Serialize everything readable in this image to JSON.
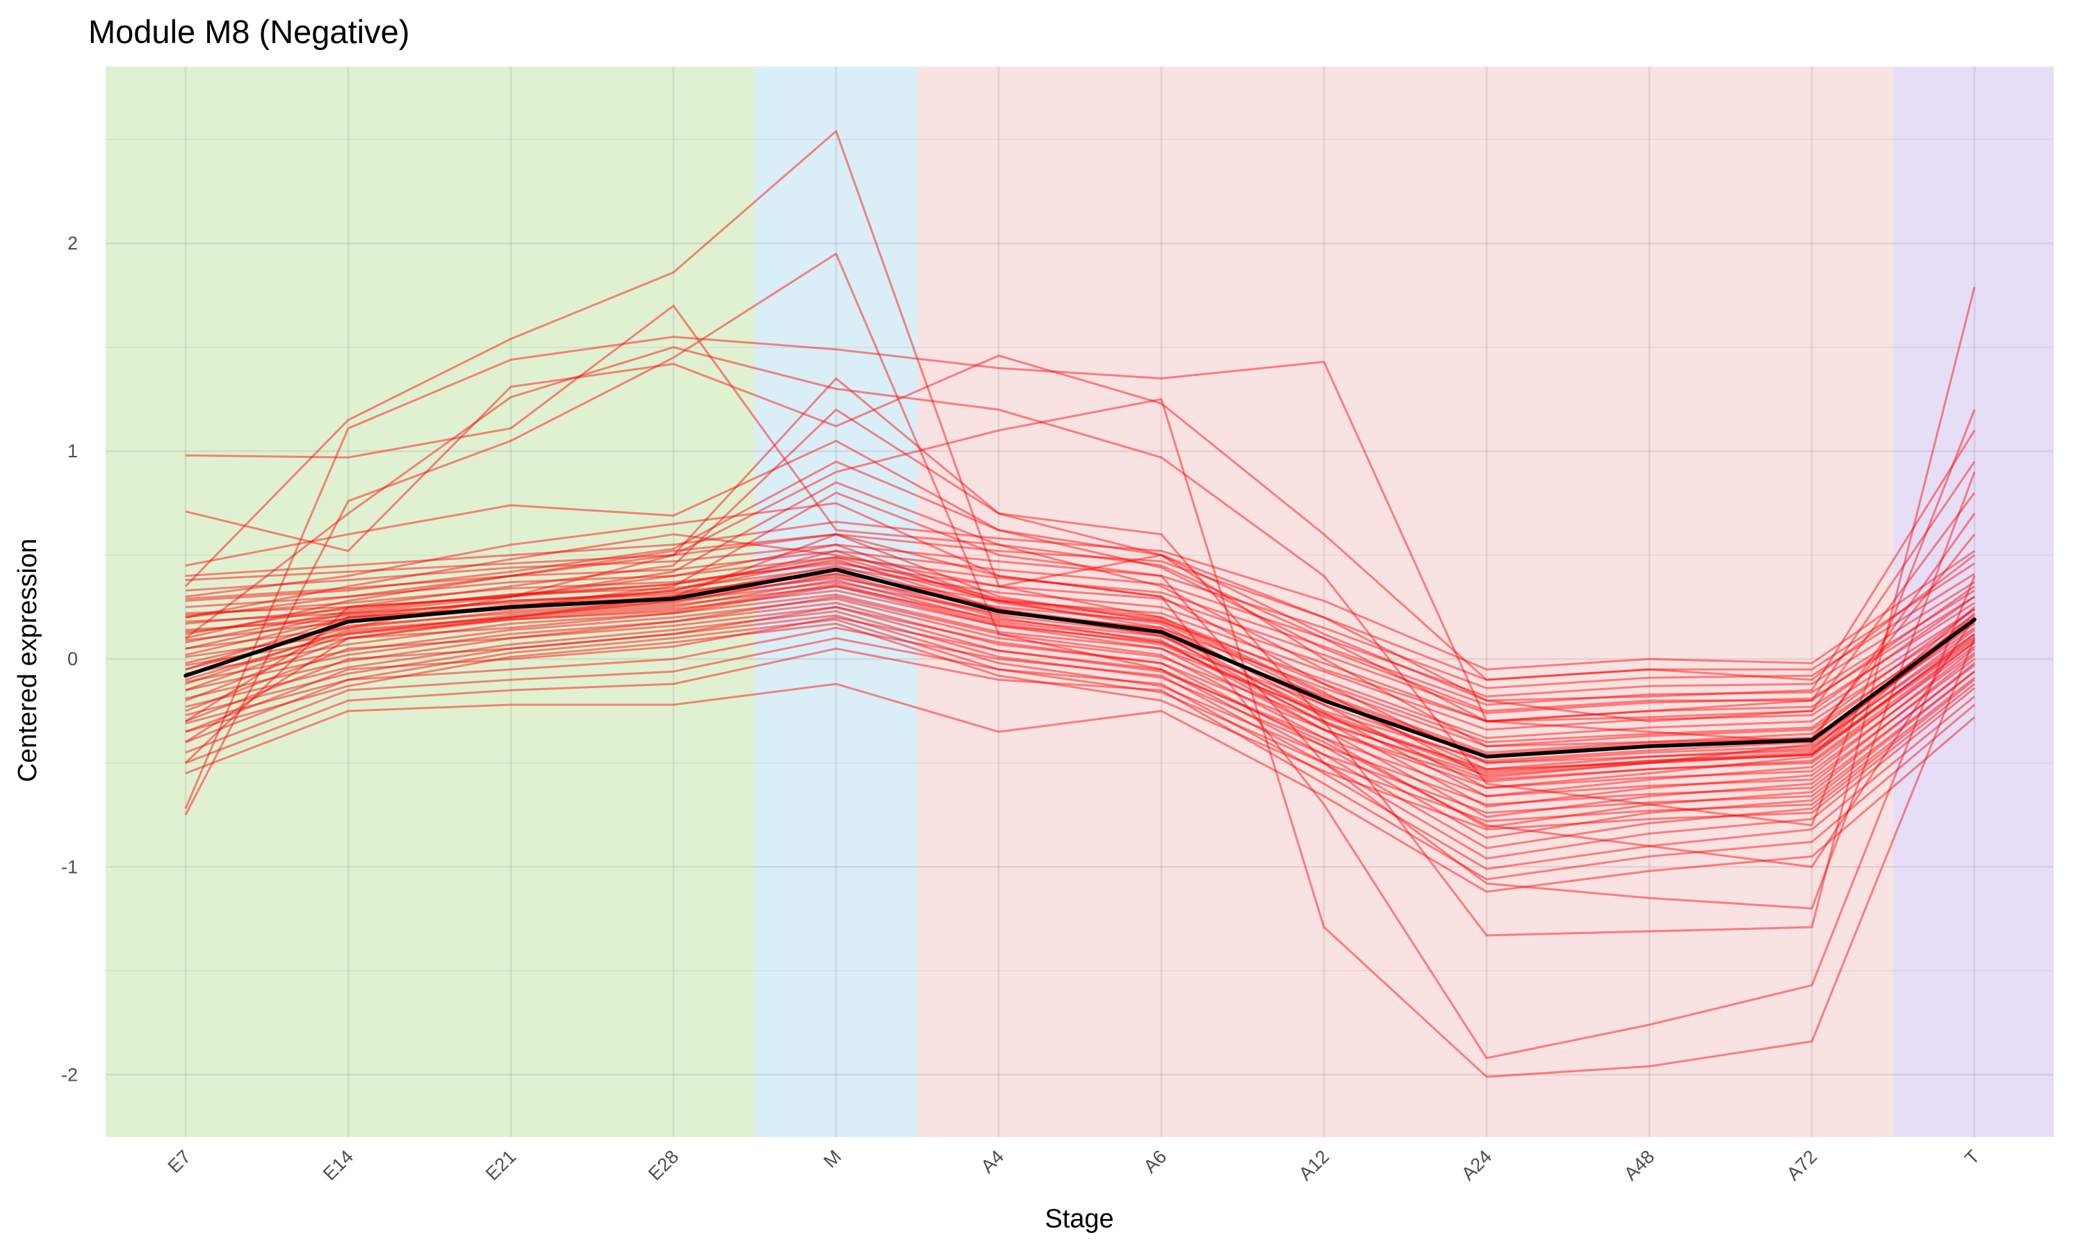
{
  "chart_data": {
    "type": "line",
    "title": "Module M8 (Negative)",
    "xlabel": "Stage",
    "ylabel": "Centered expression",
    "categories": [
      "E7",
      "E14",
      "E21",
      "E28",
      "M",
      "A4",
      "A6",
      "A12",
      "A24",
      "A48",
      "A72",
      "T"
    ],
    "ylim": [
      -2.3,
      2.85
    ],
    "yticks": [
      -2,
      -1,
      0,
      1,
      2
    ],
    "ytick_labels": [
      "-2",
      "-1",
      "0",
      "1",
      "2"
    ],
    "grid": true,
    "legend": "none",
    "stage_groups": [
      {
        "from": "E7",
        "to": "E28",
        "color": "#e0f1d2"
      },
      {
        "from": "M",
        "to": "M",
        "color": "#daeef8"
      },
      {
        "from": "A4",
        "to": "A72",
        "color": "#f9e2e2"
      },
      {
        "from": "T",
        "to": "T",
        "color": "#e6def6"
      }
    ],
    "gene_line_color": "#ff0000",
    "gene_line_opacity": 0.45,
    "mean_line_color": "#000000",
    "mean_series": [
      -0.08,
      0.18,
      0.25,
      0.29,
      0.43,
      0.23,
      0.13,
      -0.2,
      -0.47,
      -0.42,
      -0.39,
      0.19
    ],
    "gene_series": [
      [
        0.98,
        0.97,
        1.11,
        1.7,
        0.62,
        0.55,
        0.45,
        0.1,
        -0.3,
        -0.25,
        -0.2,
        0.35
      ],
      [
        0.71,
        0.52,
        1.31,
        1.42,
        1.12,
        1.46,
        1.23,
        0.6,
        -0.1,
        -0.05,
        -0.1,
        0.5
      ],
      [
        0.35,
        1.15,
        1.54,
        1.86,
        2.54,
        0.35,
        0.5,
        0.2,
        -0.2,
        -0.3,
        -0.25,
        0.3
      ],
      [
        -0.72,
        1.11,
        1.44,
        1.55,
        1.49,
        1.4,
        1.35,
        1.43,
        -0.3,
        -0.35,
        -0.4,
        0.7
      ],
      [
        -0.75,
        0.76,
        1.05,
        1.45,
        1.95,
        0.12,
        -0.05,
        -0.4,
        -0.8,
        -0.9,
        -1.0,
        0.2
      ],
      [
        0.1,
        0.7,
        1.26,
        1.5,
        1.3,
        1.2,
        0.97,
        0.4,
        -0.6,
        -0.7,
        -0.8,
        1.2
      ],
      [
        -0.5,
        0.25,
        0.3,
        0.5,
        0.9,
        1.1,
        1.25,
        -1.29,
        -2.01,
        -1.96,
        -1.84,
        0.1
      ],
      [
        -0.4,
        0.1,
        0.2,
        0.3,
        0.6,
        0.4,
        0.3,
        -0.7,
        -1.92,
        -1.76,
        -1.57,
        0.4
      ],
      [
        0.2,
        0.3,
        0.4,
        0.5,
        1.35,
        0.7,
        0.6,
        -0.3,
        -1.33,
        -1.31,
        -1.29,
        1.79
      ],
      [
        -0.3,
        0.2,
        0.25,
        0.35,
        0.8,
        0.5,
        0.4,
        -0.5,
        -1.08,
        -1.15,
        -1.2,
        0.9
      ],
      [
        0.45,
        0.6,
        0.74,
        0.69,
        1.05,
        0.62,
        0.5,
        0.0,
        -0.42,
        -0.4,
        -0.38,
        0.6
      ],
      [
        0.3,
        0.4,
        0.55,
        0.65,
        0.75,
        0.4,
        0.3,
        -0.12,
        -0.5,
        -0.47,
        -0.44,
        0.25
      ],
      [
        0.2,
        0.35,
        0.48,
        0.6,
        0.5,
        0.35,
        0.2,
        -0.16,
        -0.57,
        -0.5,
        -0.46,
        0.22
      ],
      [
        0.1,
        0.28,
        0.4,
        0.52,
        0.6,
        0.3,
        0.18,
        -0.19,
        -0.53,
        -0.5,
        -0.41,
        0.18
      ],
      [
        0.05,
        0.22,
        0.3,
        0.4,
        0.55,
        0.28,
        0.15,
        -0.22,
        -0.62,
        -0.55,
        -0.47,
        0.12
      ],
      [
        -0.05,
        0.2,
        0.25,
        0.33,
        0.48,
        0.24,
        0.11,
        -0.26,
        -0.66,
        -0.58,
        -0.52,
        0.08
      ],
      [
        -0.12,
        0.14,
        0.2,
        0.28,
        0.4,
        0.2,
        0.08,
        -0.3,
        -0.71,
        -0.62,
        -0.56,
        0.05
      ],
      [
        -0.2,
        0.1,
        0.15,
        0.22,
        0.35,
        0.16,
        0.05,
        -0.34,
        -0.76,
        -0.66,
        -0.6,
        0.02
      ],
      [
        -0.25,
        0.05,
        0.1,
        0.18,
        0.3,
        0.12,
        0.02,
        -0.38,
        -0.81,
        -0.7,
        -0.64,
        -0.02
      ],
      [
        -0.3,
        0.0,
        0.05,
        0.12,
        0.25,
        0.08,
        -0.02,
        -0.42,
        -0.86,
        -0.74,
        -0.68,
        -0.06
      ],
      [
        -0.35,
        -0.05,
        0.0,
        0.06,
        0.2,
        0.04,
        -0.05,
        -0.46,
        -0.91,
        -0.79,
        -0.72,
        -0.1
      ],
      [
        -0.4,
        -0.1,
        -0.05,
        0.0,
        0.15,
        0.0,
        -0.08,
        -0.5,
        -0.96,
        -0.84,
        -0.77,
        -0.14
      ],
      [
        -0.45,
        -0.15,
        -0.1,
        -0.06,
        0.1,
        -0.05,
        -0.12,
        -0.55,
        -1.01,
        -0.9,
        -0.82,
        -0.18
      ],
      [
        -0.5,
        -0.2,
        -0.15,
        -0.12,
        0.05,
        -0.1,
        -0.15,
        -0.6,
        -1.06,
        -0.95,
        -0.88,
        -0.22
      ],
      [
        -0.55,
        -0.25,
        -0.22,
        -0.22,
        -0.12,
        -0.35,
        -0.25,
        -0.66,
        -1.12,
        -1.02,
        -0.95,
        -0.28
      ],
      [
        0.4,
        0.45,
        0.5,
        0.55,
        0.66,
        0.58,
        0.52,
        0.28,
        -0.05,
        0.0,
        -0.02,
        0.52
      ],
      [
        0.38,
        0.42,
        0.46,
        0.5,
        0.6,
        0.52,
        0.47,
        0.2,
        -0.1,
        -0.05,
        -0.05,
        0.46
      ],
      [
        0.33,
        0.38,
        0.44,
        0.47,
        0.55,
        0.47,
        0.4,
        0.15,
        -0.14,
        -0.09,
        -0.08,
        0.41
      ],
      [
        0.29,
        0.34,
        0.4,
        0.43,
        0.52,
        0.43,
        0.36,
        0.1,
        -0.18,
        -0.13,
        -0.12,
        0.37
      ],
      [
        0.25,
        0.3,
        0.37,
        0.4,
        0.49,
        0.39,
        0.32,
        0.06,
        -0.22,
        -0.17,
        -0.16,
        0.33
      ],
      [
        0.21,
        0.27,
        0.34,
        0.37,
        0.46,
        0.35,
        0.29,
        0.02,
        -0.26,
        -0.21,
        -0.19,
        0.3
      ],
      [
        0.17,
        0.24,
        0.31,
        0.34,
        0.44,
        0.32,
        0.25,
        -0.02,
        -0.3,
        -0.25,
        -0.23,
        0.27
      ],
      [
        0.13,
        0.21,
        0.28,
        0.32,
        0.41,
        0.28,
        0.22,
        -0.06,
        -0.34,
        -0.29,
        -0.27,
        0.24
      ],
      [
        0.09,
        0.18,
        0.26,
        0.3,
        0.39,
        0.25,
        0.18,
        -0.1,
        -0.38,
        -0.33,
        -0.3,
        0.21
      ],
      [
        0.05,
        0.15,
        0.23,
        0.28,
        0.37,
        0.22,
        0.15,
        -0.14,
        -0.42,
        -0.37,
        -0.34,
        0.18
      ],
      [
        0.01,
        0.12,
        0.21,
        0.26,
        0.35,
        0.19,
        0.11,
        -0.18,
        -0.46,
        -0.41,
        -0.38,
        0.15
      ],
      [
        -0.03,
        0.1,
        0.19,
        0.24,
        0.33,
        0.16,
        0.08,
        -0.22,
        -0.5,
        -0.45,
        -0.42,
        0.12
      ],
      [
        -0.07,
        0.07,
        0.17,
        0.22,
        0.31,
        0.13,
        0.05,
        -0.26,
        -0.54,
        -0.49,
        -0.46,
        0.09
      ],
      [
        -0.11,
        0.04,
        0.14,
        0.2,
        0.29,
        0.1,
        0.01,
        -0.3,
        -0.58,
        -0.53,
        -0.5,
        0.06
      ],
      [
        -0.15,
        0.02,
        0.12,
        0.18,
        0.27,
        0.07,
        -0.02,
        -0.34,
        -0.62,
        -0.57,
        -0.54,
        0.03
      ],
      [
        -0.19,
        -0.01,
        0.1,
        0.16,
        0.25,
        0.04,
        -0.06,
        -0.38,
        -0.66,
        -0.61,
        -0.58,
        0.0
      ],
      [
        -0.23,
        -0.04,
        0.07,
        0.14,
        0.23,
        0.01,
        -0.09,
        -0.42,
        -0.7,
        -0.65,
        -0.62,
        -0.03
      ],
      [
        -0.27,
        -0.07,
        0.05,
        0.12,
        0.21,
        -0.02,
        -0.13,
        -0.46,
        -0.74,
        -0.69,
        -0.66,
        -0.06
      ],
      [
        -0.31,
        -0.1,
        0.03,
        0.1,
        0.19,
        -0.05,
        -0.16,
        -0.5,
        -0.78,
        -0.73,
        -0.7,
        -0.09
      ],
      [
        -0.35,
        -0.13,
        0.01,
        0.08,
        0.17,
        -0.08,
        -0.2,
        -0.54,
        -0.82,
        -0.77,
        -0.74,
        -0.12
      ],
      [
        0.28,
        0.33,
        0.42,
        0.53,
        0.95,
        0.62,
        0.44,
        0.05,
        -0.25,
        -0.2,
        -0.2,
        0.95
      ],
      [
        0.12,
        0.25,
        0.35,
        0.45,
        1.2,
        0.7,
        0.5,
        0.12,
        -0.2,
        -0.18,
        -0.15,
        1.1
      ],
      [
        -0.05,
        0.15,
        0.3,
        0.42,
        0.85,
        0.55,
        0.35,
        -0.05,
        -0.3,
        -0.28,
        -0.25,
        0.8
      ],
      [
        0.18,
        0.22,
        0.27,
        0.33,
        0.52,
        0.27,
        0.17,
        -0.25,
        -0.49,
        -0.44,
        -0.4,
        0.17
      ],
      [
        0.14,
        0.19,
        0.24,
        0.3,
        0.45,
        0.24,
        0.14,
        -0.28,
        -0.53,
        -0.47,
        -0.43,
        0.14
      ],
      [
        -0.02,
        0.16,
        0.22,
        0.27,
        0.41,
        0.21,
        0.12,
        -0.31,
        -0.56,
        -0.5,
        -0.46,
        0.11
      ],
      [
        0.22,
        0.25,
        0.3,
        0.36,
        0.47,
        0.28,
        0.19,
        -0.17,
        -0.45,
        -0.4,
        -0.36,
        0.2
      ],
      [
        -0.1,
        0.13,
        0.2,
        0.25,
        0.38,
        0.18,
        0.09,
        -0.34,
        -0.59,
        -0.53,
        -0.49,
        0.08
      ],
      [
        0.02,
        0.2,
        0.28,
        0.31,
        0.43,
        0.23,
        0.13,
        -0.2,
        -0.47,
        -0.42,
        -0.39,
        0.19
      ],
      [
        -0.15,
        0.12,
        0.19,
        0.23,
        0.36,
        0.17,
        0.07,
        -0.27,
        -0.55,
        -0.49,
        -0.45,
        0.1
      ],
      [
        0.08,
        0.23,
        0.31,
        0.36,
        0.49,
        0.29,
        0.2,
        -0.12,
        -0.4,
        -0.36,
        -0.33,
        0.24
      ]
    ]
  }
}
